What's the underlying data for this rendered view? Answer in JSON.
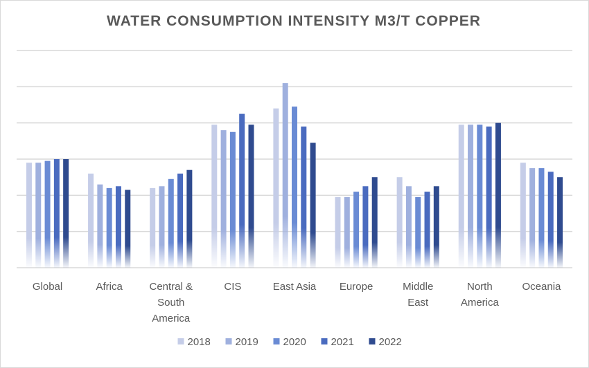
{
  "chart_data": {
    "type": "bar",
    "title": "WATER CONSUMPTION INTENSITY M3/T COPPER",
    "xlabel": "",
    "ylabel": "",
    "ylim": [
      0,
      6
    ],
    "grid": true,
    "legend_position": "bottom",
    "categories": [
      [
        "Global"
      ],
      [
        "Africa"
      ],
      [
        "Central &",
        "South",
        "America"
      ],
      [
        "CIS"
      ],
      [
        "East Asia"
      ],
      [
        "Europe"
      ],
      [
        "Middle",
        "East"
      ],
      [
        "North",
        "America"
      ],
      [
        "Oceania"
      ]
    ],
    "series": [
      {
        "name": "2018",
        "color": "#c5cde8",
        "values": [
          2.9,
          2.6,
          2.2,
          3.95,
          4.4,
          1.95,
          2.5,
          3.95,
          2.9
        ]
      },
      {
        "name": "2019",
        "color": "#9fb0de",
        "values": [
          2.9,
          2.3,
          2.25,
          3.8,
          5.1,
          1.95,
          2.25,
          3.95,
          2.75
        ]
      },
      {
        "name": "2020",
        "color": "#6a8bd4",
        "values": [
          2.95,
          2.2,
          2.45,
          3.75,
          4.45,
          2.1,
          1.95,
          3.95,
          2.75
        ]
      },
      {
        "name": "2021",
        "color": "#4a6bbf",
        "values": [
          3.0,
          2.25,
          2.6,
          4.25,
          3.9,
          2.25,
          2.1,
          3.9,
          2.65
        ]
      },
      {
        "name": "2022",
        "color": "#2f4b8f",
        "values": [
          3.0,
          2.15,
          2.7,
          3.95,
          3.45,
          2.5,
          2.25,
          4.0,
          2.5
        ]
      }
    ]
  }
}
